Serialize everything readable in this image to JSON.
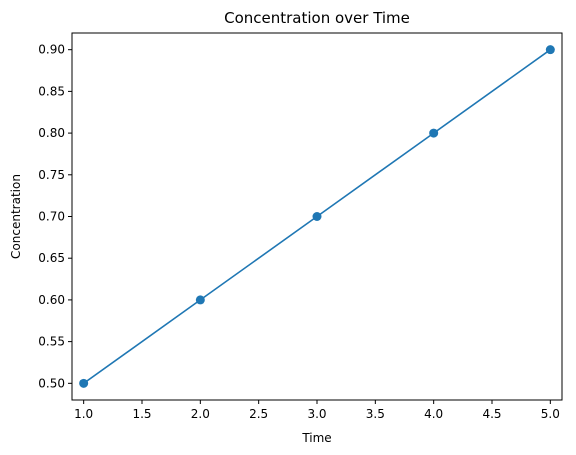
{
  "chart_data": {
    "type": "line",
    "title": "Concentration over Time",
    "xlabel": "Time",
    "ylabel": "Concentration",
    "x": [
      1.0,
      2.0,
      3.0,
      4.0,
      5.0
    ],
    "series": [
      {
        "values": [
          0.5,
          0.6,
          0.7,
          0.8,
          0.9
        ],
        "color": "#1f77b4",
        "marker": "circle"
      }
    ],
    "xlim": [
      0.9,
      5.1
    ],
    "ylim": [
      0.48,
      0.92
    ],
    "x_ticks": [
      1.0,
      1.5,
      2.0,
      2.5,
      3.0,
      3.5,
      4.0,
      4.5,
      5.0
    ],
    "x_tick_labels": [
      "1.0",
      "1.5",
      "2.0",
      "2.5",
      "3.0",
      "3.5",
      "4.0",
      "4.5",
      "5.0"
    ],
    "y_ticks": [
      0.5,
      0.55,
      0.6,
      0.65,
      0.7,
      0.75,
      0.8,
      0.85,
      0.9
    ],
    "y_tick_labels": [
      "0.50",
      "0.55",
      "0.60",
      "0.65",
      "0.70",
      "0.75",
      "0.80",
      "0.85",
      "0.90"
    ],
    "grid": false,
    "legend": "none"
  }
}
